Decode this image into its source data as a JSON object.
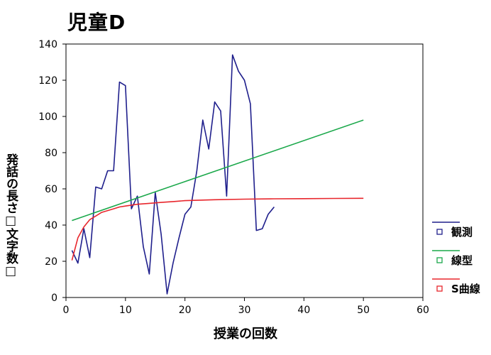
{
  "chart_data": {
    "type": "line",
    "title": "児童D",
    "xlabel": "授業の回数",
    "ylabel": "発話の長さ□文字数□",
    "xlim": [
      0,
      60
    ],
    "ylim": [
      0,
      140
    ],
    "xticks": [
      0,
      10,
      20,
      30,
      40,
      50,
      60
    ],
    "yticks": [
      0,
      20,
      40,
      60,
      80,
      100,
      120,
      140
    ],
    "grid": false,
    "legend_position": "right",
    "series": [
      {
        "name": "観測",
        "color": "#1f1f8c",
        "marker_icon": "hollow-square",
        "x": [
          1,
          2,
          3,
          4,
          5,
          6,
          7,
          8,
          9,
          10,
          11,
          12,
          13,
          14,
          15,
          16,
          17,
          18,
          19,
          20,
          21,
          22,
          23,
          24,
          25,
          26,
          27,
          28,
          29,
          30,
          31,
          32,
          33,
          34,
          35
        ],
        "y": [
          26,
          19,
          38,
          22,
          61,
          60,
          70,
          70,
          119,
          117,
          49,
          56,
          28,
          13,
          58,
          35,
          2,
          19,
          33,
          46,
          50,
          70,
          98,
          82,
          108,
          103,
          56,
          134,
          125,
          120,
          107,
          37,
          38,
          46,
          50
        ]
      },
      {
        "name": "線型",
        "color": "#1aa84a",
        "marker_icon": "hollow-square",
        "x": [
          1,
          50
        ],
        "y": [
          42.5,
          98
        ]
      },
      {
        "name": "S曲線",
        "color": "#e8262c",
        "marker_icon": "hollow-square",
        "x": [
          1,
          2,
          3,
          4,
          5,
          6,
          7,
          8,
          9,
          10,
          12,
          14,
          16,
          18,
          20,
          25,
          30,
          35,
          40,
          45,
          50
        ],
        "y": [
          20.5,
          33,
          39,
          43,
          45,
          47,
          48,
          49,
          50,
          50.5,
          51.5,
          52,
          52.5,
          53,
          53.5,
          54,
          54.3,
          54.5,
          54.6,
          54.7,
          54.8
        ]
      }
    ]
  }
}
